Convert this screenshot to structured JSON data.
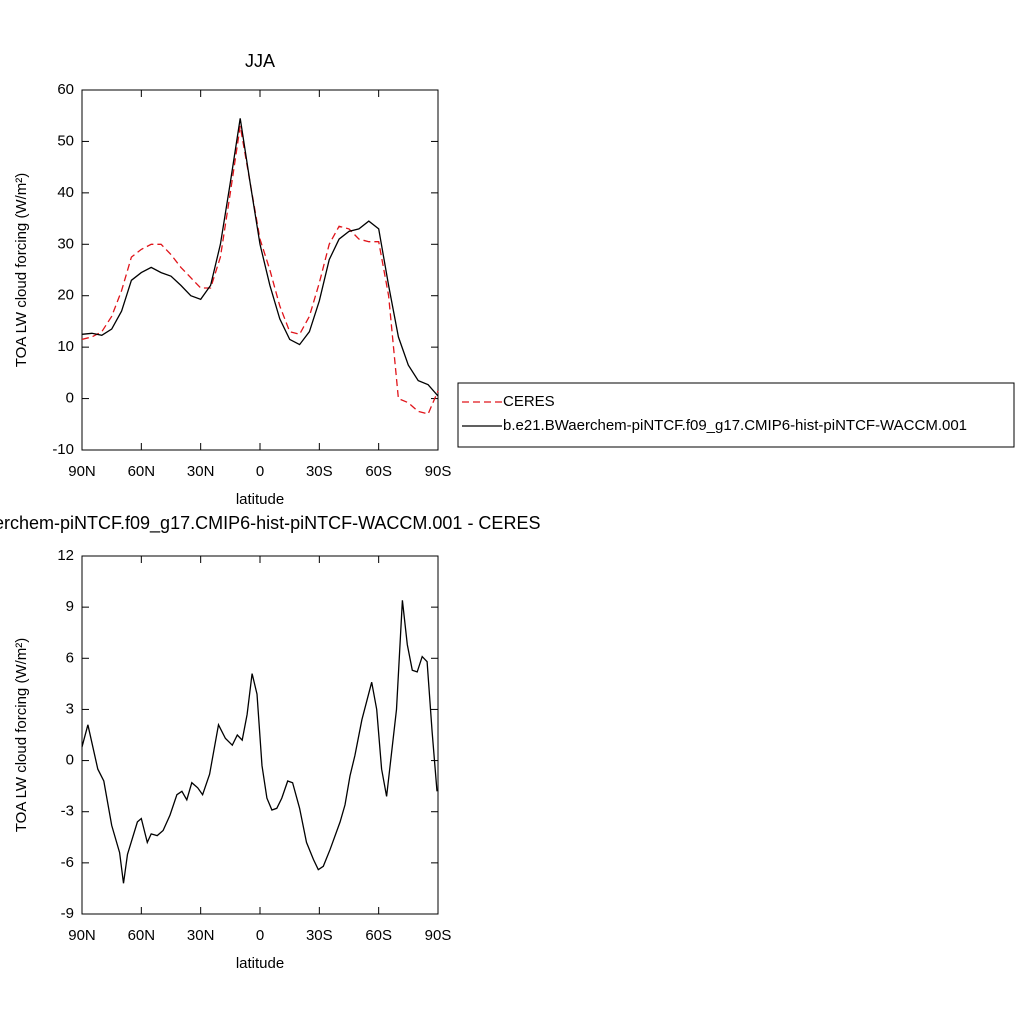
{
  "chart_data": [
    {
      "type": "line",
      "title": "JJA",
      "xlabel": "latitude",
      "ylabel": "TOA LW cloud forcing (W/m²)",
      "xlim": [
        90,
        -90
      ],
      "ylim": [
        -10,
        60
      ],
      "xticks": [
        {
          "value": 90,
          "label": "90N"
        },
        {
          "value": 60,
          "label": "60N"
        },
        {
          "value": 30,
          "label": "30N"
        },
        0,
        {
          "value": -30,
          "label": "30S"
        },
        {
          "value": -60,
          "label": "60S"
        },
        {
          "value": -90,
          "label": "90S"
        }
      ],
      "yticks": [
        -10,
        0,
        10,
        20,
        30,
        40,
        50,
        60
      ],
      "x": [
        90,
        85,
        80,
        75,
        70,
        65,
        60,
        55,
        50,
        45,
        40,
        35,
        30,
        25,
        20,
        15,
        10,
        5,
        0,
        -5,
        -10,
        -15,
        -20,
        -25,
        -30,
        -35,
        -40,
        -45,
        -50,
        -55,
        -60,
        -65,
        -70,
        -75,
        -80,
        -85,
        -90
      ],
      "legend": "right",
      "series": [
        {
          "name": "CERES",
          "color": "#e0141a",
          "dash": true,
          "values": [
            11.5,
            12,
            13,
            16,
            21,
            27.5,
            29,
            30,
            30,
            28,
            25.5,
            23.5,
            21.5,
            21.5,
            27.5,
            40,
            53,
            42,
            31,
            25,
            18,
            13,
            12.5,
            16,
            22.5,
            30,
            33.5,
            33,
            31,
            30.5,
            30.5,
            20,
            0,
            -0.8,
            -2.5,
            -3,
            1.5
          ]
        },
        {
          "name": "b.e21.BWaerchem-piNTCF.f09_g17.CMIP6-hist-piNTCF-WACCM.001",
          "color": "#000000",
          "dash": false,
          "values": [
            12.5,
            12.7,
            12.3,
            13.5,
            17,
            23,
            24.5,
            25.5,
            24.5,
            23.8,
            22,
            20,
            19.3,
            22,
            30,
            42,
            54.5,
            42,
            30,
            22,
            15.5,
            11.5,
            10.5,
            13,
            19,
            27,
            31,
            32.5,
            33,
            34.5,
            33,
            22,
            12,
            6.5,
            3.5,
            2.7,
            0.5
          ]
        }
      ]
    },
    {
      "type": "line",
      "title": "erchem-piNTCF.f09_g17.CMIP6-hist-piNTCF-WACCM.001 - CERES",
      "xlabel": "latitude",
      "ylabel": "TOA LW cloud forcing (W/m²)",
      "xlim": [
        90,
        -90
      ],
      "ylim": [
        -9,
        12
      ],
      "xticks": [
        {
          "value": 90,
          "label": "90N"
        },
        {
          "value": 60,
          "label": "60N"
        },
        {
          "value": 30,
          "label": "30N"
        },
        0,
        {
          "value": -30,
          "label": "30S"
        },
        {
          "value": -60,
          "label": "60S"
        },
        {
          "value": -90,
          "label": "90S"
        }
      ],
      "yticks": [
        -9,
        -6,
        -3,
        0,
        3,
        6,
        9,
        12
      ],
      "color": "#000000",
      "x": [
        90,
        87,
        82,
        79,
        75,
        71,
        69,
        67,
        62,
        60,
        57,
        55,
        52,
        49,
        45.5,
        42,
        39.5,
        37,
        34.5,
        31.5,
        29,
        25.5,
        21,
        17.5,
        14,
        11.5,
        9,
        6.5,
        4,
        1.5,
        -1,
        -3.5,
        -6,
        -8.5,
        -11,
        -14,
        -16.5,
        -20,
        -23.5,
        -27,
        -29.5,
        -32,
        -35.5,
        -40.5,
        -43,
        -45.5,
        -48,
        -51.5,
        -54,
        -56.5,
        -59,
        -61.5,
        -64,
        -69,
        -72,
        -74.5,
        -77,
        -79.5,
        -82,
        -84.5,
        -87,
        -89.5
      ],
      "values": [
        0.8,
        2.1,
        -0.5,
        -1.2,
        -3.8,
        -5.4,
        -7.2,
        -5.5,
        -3.6,
        -3.4,
        -4.8,
        -4.3,
        -4.4,
        -4.1,
        -3.2,
        -2,
        -1.8,
        -2.3,
        -1.3,
        -1.6,
        -2,
        -0.8,
        2.1,
        1.3,
        0.9,
        1.5,
        1.2,
        2.7,
        5.1,
        3.9,
        -0.3,
        -2.2,
        -2.9,
        -2.8,
        -2.2,
        -1.2,
        -1.3,
        -2.8,
        -4.8,
        -5.8,
        -6.4,
        -6.2,
        -5.2,
        -3.6,
        -2.6,
        -0.9,
        0.3,
        2.4,
        3.5,
        4.6,
        3,
        -0.5,
        -2.1,
        3,
        9.4,
        6.8,
        5.3,
        5.2,
        6.1,
        5.8,
        1.7,
        -1.8
      ]
    }
  ]
}
